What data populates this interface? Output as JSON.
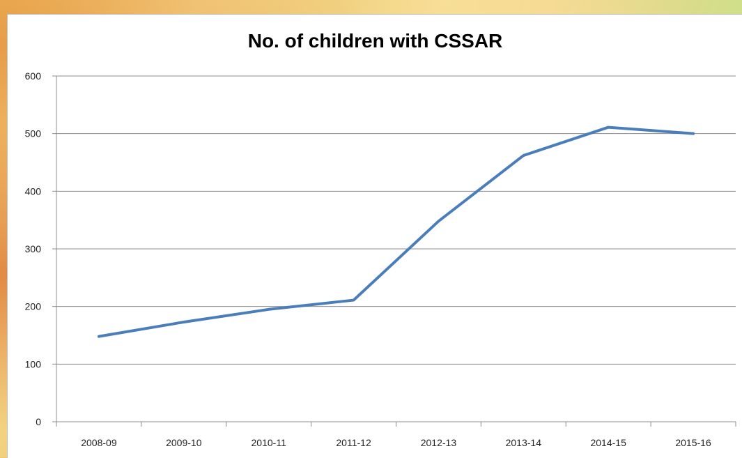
{
  "chart_data": {
    "type": "line",
    "title": "No. of children with CSSAR",
    "xlabel": "",
    "ylabel": "",
    "categories": [
      "2008-09",
      "2009-10",
      "2010-11",
      "2011-12",
      "2012-13",
      "2013-14",
      "2014-15",
      "2015-16"
    ],
    "series": [
      {
        "values": [
          148,
          173,
          195,
          211,
          348,
          462,
          511,
          500
        ],
        "color": "#4a7ebb"
      }
    ],
    "ylim": [
      0,
      600
    ],
    "yticks": [
      0,
      100,
      200,
      300,
      400,
      500,
      600
    ],
    "grid": true,
    "legend": "none"
  }
}
